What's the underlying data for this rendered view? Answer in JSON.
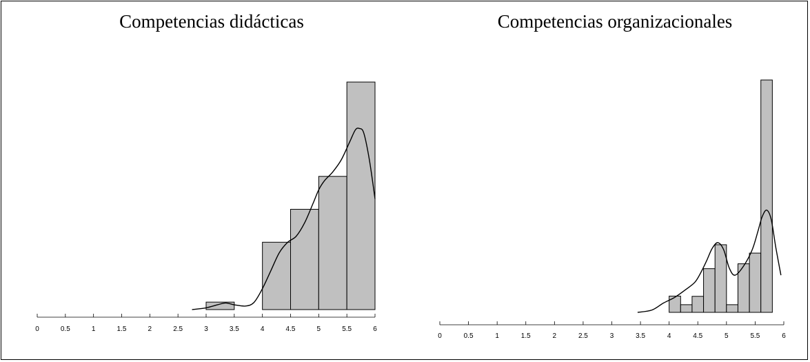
{
  "chart_data": [
    {
      "type": "bar",
      "title": "Competencias didácticas",
      "xlim": [
        0,
        6
      ],
      "x_ticks": [
        "0",
        "0.5",
        "1",
        "1.5",
        "2",
        "2.5",
        "3",
        "3.5",
        "4",
        "4.5",
        "5",
        "5.5",
        "6"
      ],
      "bins": [
        {
          "x0": 3.0,
          "x1": 3.5,
          "value": 0.025
        },
        {
          "x0": 4.0,
          "x1": 4.5,
          "value": 0.225
        },
        {
          "x0": 4.5,
          "x1": 5.0,
          "value": 0.335
        },
        {
          "x0": 5.0,
          "x1": 5.5,
          "value": 0.445
        },
        {
          "x0": 5.5,
          "x1": 6.0,
          "value": 0.76
        }
      ],
      "density_curve": [
        [
          2.75,
          0.0
        ],
        [
          3.0,
          0.006
        ],
        [
          3.2,
          0.016
        ],
        [
          3.35,
          0.022
        ],
        [
          3.5,
          0.016
        ],
        [
          3.7,
          0.012
        ],
        [
          3.85,
          0.024
        ],
        [
          4.0,
          0.07
        ],
        [
          4.15,
          0.13
        ],
        [
          4.3,
          0.19
        ],
        [
          4.45,
          0.225
        ],
        [
          4.6,
          0.245
        ],
        [
          4.75,
          0.29
        ],
        [
          4.9,
          0.355
        ],
        [
          5.0,
          0.4
        ],
        [
          5.1,
          0.43
        ],
        [
          5.25,
          0.46
        ],
        [
          5.4,
          0.5
        ],
        [
          5.55,
          0.56
        ],
        [
          5.65,
          0.6
        ],
        [
          5.72,
          0.605
        ],
        [
          5.8,
          0.59
        ],
        [
          5.9,
          0.5
        ],
        [
          6.0,
          0.37
        ]
      ],
      "ylim": [
        0,
        0.76
      ]
    },
    {
      "type": "bar",
      "title": "Competencias organizacionales",
      "xlim": [
        0,
        6
      ],
      "x_ticks": [
        "0",
        "0.5",
        "1",
        "1.5",
        "2",
        "2.5",
        "3",
        "3.5",
        "4",
        "4.5",
        "5",
        "5.5",
        "6"
      ],
      "bins": [
        {
          "x0": 4.0,
          "x1": 4.2,
          "value": 0.07
        },
        {
          "x0": 4.2,
          "x1": 4.4,
          "value": 0.033
        },
        {
          "x0": 4.4,
          "x1": 4.6,
          "value": 0.069
        },
        {
          "x0": 4.6,
          "x1": 4.8,
          "value": 0.188
        },
        {
          "x0": 4.8,
          "x1": 5.0,
          "value": 0.291
        },
        {
          "x0": 5.0,
          "x1": 5.2,
          "value": 0.033
        },
        {
          "x0": 5.2,
          "x1": 5.4,
          "value": 0.209
        },
        {
          "x0": 5.4,
          "x1": 5.6,
          "value": 0.255
        },
        {
          "x0": 5.6,
          "x1": 5.8,
          "value": 1.0
        }
      ],
      "density_curve": [
        [
          3.45,
          0.0
        ],
        [
          3.7,
          0.01
        ],
        [
          3.9,
          0.04
        ],
        [
          4.1,
          0.065
        ],
        [
          4.3,
          0.1
        ],
        [
          4.45,
          0.13
        ],
        [
          4.55,
          0.17
        ],
        [
          4.65,
          0.22
        ],
        [
          4.75,
          0.275
        ],
        [
          4.85,
          0.3
        ],
        [
          4.95,
          0.27
        ],
        [
          5.05,
          0.19
        ],
        [
          5.15,
          0.16
        ],
        [
          5.3,
          0.2
        ],
        [
          5.45,
          0.27
        ],
        [
          5.55,
          0.35
        ],
        [
          5.62,
          0.41
        ],
        [
          5.7,
          0.44
        ],
        [
          5.78,
          0.4
        ],
        [
          5.86,
          0.28
        ],
        [
          5.95,
          0.16
        ]
      ],
      "ylim": [
        0,
        1.0
      ]
    }
  ]
}
